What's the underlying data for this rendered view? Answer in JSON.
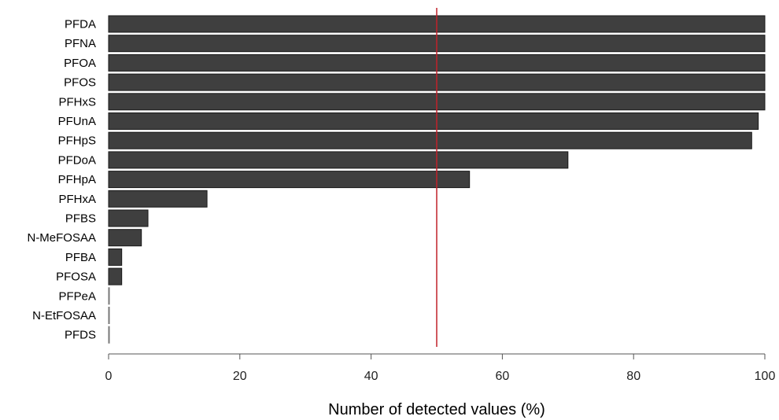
{
  "chart_data": {
    "type": "bar",
    "orientation": "horizontal",
    "categories": [
      "PFDA",
      "PFNA",
      "PFOA",
      "PFOS",
      "PFHxS",
      "PFUnA",
      "PFHpS",
      "PFDoA",
      "PFHpA",
      "PFHxA",
      "PFBS",
      "N-MeFOSAA",
      "PFBA",
      "PFOSA",
      "PFPeA",
      "N-EtFOSAA",
      "PFDS"
    ],
    "values": [
      100,
      100,
      100,
      100,
      100,
      99,
      98,
      70,
      55,
      15,
      6,
      5,
      2,
      2,
      0,
      0,
      0
    ],
    "title": "",
    "xlabel": "Number of detected values (%)",
    "ylabel": "",
    "xlim": [
      0,
      100
    ],
    "xticks": [
      "0",
      "20",
      "40",
      "60",
      "80",
      "100"
    ],
    "reference_line": {
      "x": 50,
      "color": "#c0202a"
    },
    "grid": false,
    "legend": "none",
    "bar_color": "#3f3f3f"
  }
}
